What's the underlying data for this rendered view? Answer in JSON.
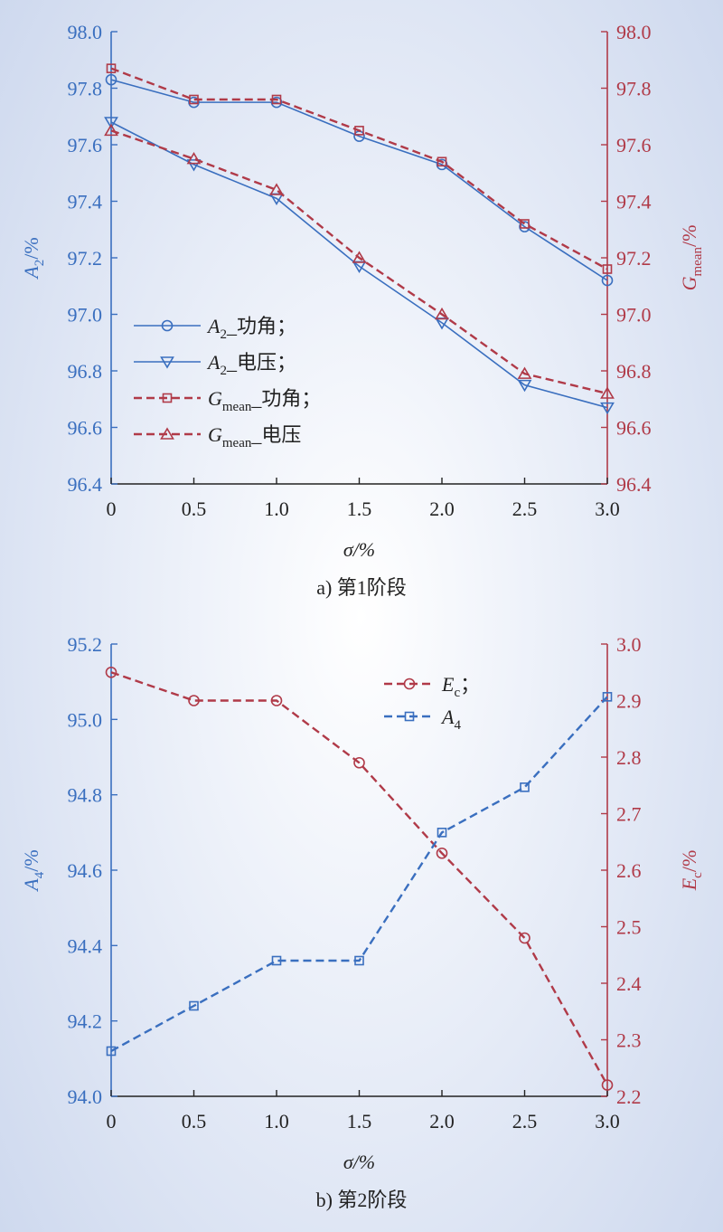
{
  "chart_data": [
    {
      "type": "line",
      "caption": "a) 第1阶段",
      "xlabel": "σ/%",
      "ylabel_left": {
        "main": "A",
        "sub": "2",
        "unit": "/%"
      },
      "ylabel_right": {
        "main": "G",
        "sub": "mean",
        "unit": "/%"
      },
      "x": [
        0,
        0.5,
        1.0,
        1.5,
        2.0,
        2.5,
        3.0
      ],
      "x_ticks": [
        "0",
        "0.5",
        "1.0",
        "1.5",
        "2.0",
        "2.5",
        "3.0"
      ],
      "ylim_left": [
        96.4,
        98.0
      ],
      "ylim_right": [
        96.4,
        98.0
      ],
      "y_ticks_left": [
        "96.4",
        "96.6",
        "96.8",
        "97.0",
        "97.2",
        "97.4",
        "97.6",
        "97.8",
        "98.0"
      ],
      "y_ticks_right": [
        "96.4",
        "96.6",
        "96.8",
        "97.0",
        "97.2",
        "97.4",
        "97.6",
        "97.8",
        "98.0"
      ],
      "legend_position": "left-center",
      "series": [
        {
          "name_main": "A",
          "name_sub": "2",
          "name_rest": "_功角；",
          "axis": "left",
          "marker": "circle",
          "dash": "solid",
          "color": "#3a6fbf",
          "values": [
            97.83,
            97.75,
            97.75,
            97.63,
            97.53,
            97.31,
            97.12
          ]
        },
        {
          "name_main": "A",
          "name_sub": "2",
          "name_rest": "_电压；",
          "axis": "left",
          "marker": "triangle-down",
          "dash": "solid",
          "color": "#3a6fbf",
          "values": [
            97.68,
            97.53,
            97.41,
            97.17,
            96.97,
            96.75,
            96.67
          ]
        },
        {
          "name_main": "G",
          "name_sub": "mean",
          "name_rest": "_功角；",
          "axis": "right",
          "marker": "square",
          "dash": "dashed",
          "color": "#b03a48",
          "values": [
            97.87,
            97.76,
            97.76,
            97.65,
            97.54,
            97.32,
            97.16
          ]
        },
        {
          "name_main": "G",
          "name_sub": "mean",
          "name_rest": "_电压",
          "axis": "right",
          "marker": "triangle-up",
          "dash": "dashed",
          "color": "#b03a48",
          "values": [
            97.65,
            97.55,
            97.44,
            97.2,
            97.0,
            96.79,
            96.72
          ]
        }
      ]
    },
    {
      "type": "line",
      "caption": "b) 第2阶段",
      "xlabel": "σ/%",
      "ylabel_left": {
        "main": "A",
        "sub": "4",
        "unit": "/%"
      },
      "ylabel_right": {
        "main": "E",
        "sub": "c",
        "unit": "/%"
      },
      "x": [
        0,
        0.5,
        1.0,
        1.5,
        2.0,
        2.5,
        3.0
      ],
      "x_ticks": [
        "0",
        "0.5",
        "1.0",
        "1.5",
        "2.0",
        "2.5",
        "3.0"
      ],
      "ylim_left": [
        94.0,
        95.2
      ],
      "ylim_right": [
        2.2,
        3.0
      ],
      "y_ticks_left": [
        "94.0",
        "94.2",
        "94.4",
        "94.6",
        "94.8",
        "95.0",
        "95.2"
      ],
      "y_ticks_right": [
        "2.2",
        "2.3",
        "2.4",
        "2.5",
        "2.6",
        "2.7",
        "2.8",
        "2.9",
        "3.0"
      ],
      "legend_position": "top-center",
      "series": [
        {
          "name_main": "E",
          "name_sub": "c",
          "name_rest": "；",
          "axis": "right",
          "marker": "circle",
          "dash": "dashed",
          "color": "#b03a48",
          "values": [
            2.95,
            2.9,
            2.9,
            2.79,
            2.63,
            2.48,
            2.22
          ]
        },
        {
          "name_main": "A",
          "name_sub": "4",
          "name_rest": "",
          "axis": "left",
          "marker": "square",
          "dash": "dashed",
          "color": "#3a6fbf",
          "values": [
            94.12,
            94.24,
            94.36,
            94.36,
            94.7,
            94.82,
            95.06
          ]
        }
      ]
    }
  ],
  "colors": {
    "left_axis": "#3a6fbf",
    "right_axis": "#b03a48",
    "text": "#222222"
  }
}
